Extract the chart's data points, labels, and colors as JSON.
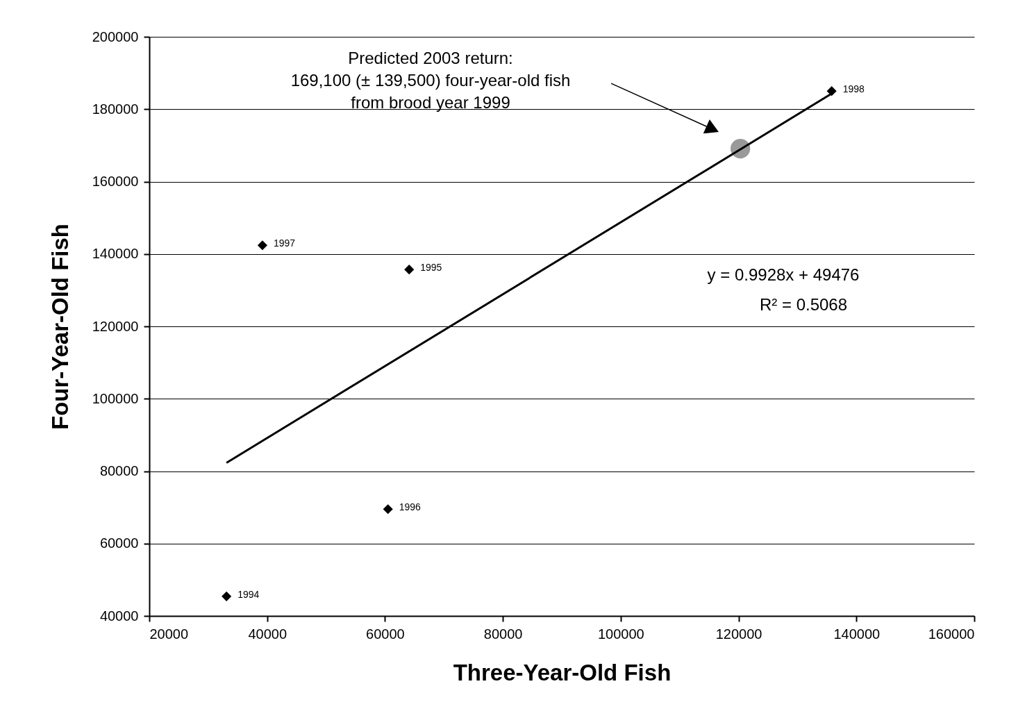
{
  "chart_data": {
    "type": "scatter",
    "xlabel": "Three-Year-Old Fish",
    "ylabel": "Four-Year-Old Fish",
    "xlim": [
      20000,
      160000
    ],
    "xticks": [
      20000,
      40000,
      60000,
      80000,
      100000,
      120000,
      140000,
      160000
    ],
    "ylim": [
      40000,
      200000
    ],
    "yticks": [
      40000,
      60000,
      80000,
      100000,
      120000,
      140000,
      160000,
      180000,
      200000
    ],
    "grid": "y",
    "series": [
      {
        "marker": "diamond",
        "color": "#000000",
        "x": [
          33100,
          64100,
          60500,
          39200,
          135800
        ],
        "values": [
          45400,
          135700,
          69500,
          142400,
          185000
        ]
      },
      {
        "marker": "circle",
        "color": "#999999",
        "x": [
          120300
        ],
        "values": [
          169100
        ]
      },
      {
        "type": "line",
        "line_style": "solid",
        "color": "#000000",
        "x": [
          33100,
          135800
        ],
        "values": [
          82300,
          184300
        ]
      }
    ],
    "annotations": [
      "Predicted 2003 return:\n169,100 (± 139,500) four-year-old fish\nfrom brood year 1999",
      "y = 0.9928x + 49476",
      "R² = 0.5068",
      {
        "text": "1994",
        "x": 33100,
        "y": 45400
      },
      {
        "text": "1995",
        "x": 64100,
        "y": 135700
      },
      {
        "text": "1996",
        "x": 60500,
        "y": 69500
      },
      {
        "text": "1997",
        "x": 39200,
        "y": 142400
      },
      {
        "text": "1998",
        "x": 135800,
        "y": 185000
      }
    ]
  }
}
